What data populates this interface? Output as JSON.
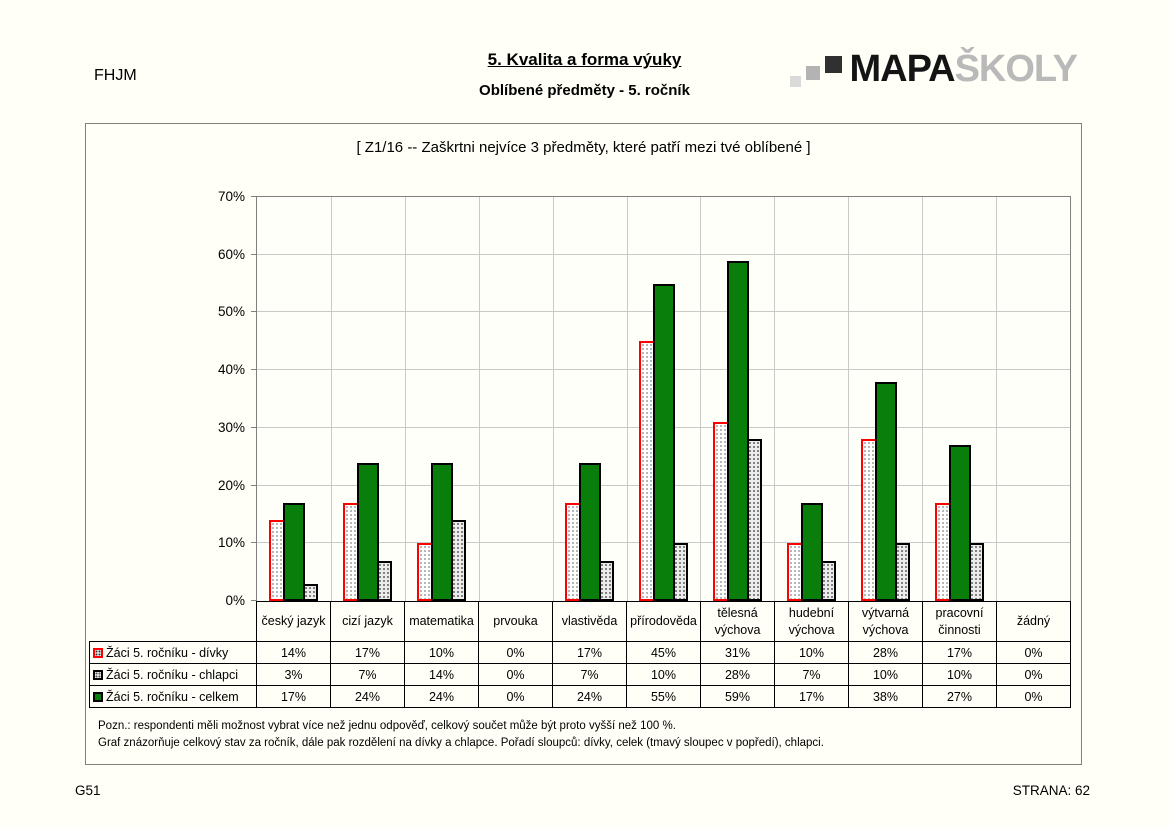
{
  "page": {
    "org_code": "FHJM",
    "section_title": "5. Kvalita a forma výuky",
    "page_subtitle": "Oblíbené předměty - 5. ročník",
    "footer_left": "G51",
    "footer_right": "STRANA: 62"
  },
  "logo": {
    "primary": "MAPA",
    "secondary": "ŠKOLY"
  },
  "chart_data": {
    "type": "bar",
    "title": "[ Z1/16 -- Zaškrtni nejvíce 3 předměty, které patří mezi tvé oblíbené ]",
    "categories": [
      "český jazyk",
      "cizí jazyk",
      "matematika",
      "prvouka",
      "vlastivěda",
      "přírodověda",
      "tělesná výchova",
      "hudební výchova",
      "výtvarná výchova",
      "pracovní činnosti",
      "žádný"
    ],
    "series": [
      {
        "name": "Žáci 5. ročníku - dívky",
        "style": "dotted-red",
        "values": [
          14,
          17,
          10,
          0,
          17,
          45,
          31,
          10,
          28,
          17,
          0
        ]
      },
      {
        "name": "Žáci 5. ročníku - chlapci",
        "style": "dotted-gray",
        "values": [
          3,
          7,
          14,
          0,
          7,
          10,
          28,
          7,
          10,
          10,
          0
        ]
      },
      {
        "name": "Žáci 5. ročníku - celkem",
        "style": "solid-green",
        "values": [
          17,
          24,
          24,
          0,
          24,
          55,
          59,
          17,
          38,
          27,
          0
        ]
      }
    ],
    "draw_order": [
      0,
      2,
      1
    ],
    "ylim": [
      0,
      70
    ],
    "ytick_step": 10,
    "value_suffix": "%",
    "grid": true,
    "legend_position": "table-left",
    "colors": {
      "total_green": "#0a7e0a",
      "girls_border": "#ff0000",
      "boys_fill": "#ececec",
      "gridline": "#c9c9c9"
    }
  },
  "notes": [
    "Pozn.: respondenti měli možnost vybrat  více než jednu odpověď, celkový součet může být proto vyšší než 100 %.",
    "Graf znázorňuje celkový stav za ročník, dále pak rozdělení na dívky a chlapce. Pořadí sloupců: dívky, celek (tmavý sloupec v popředí), chlapci."
  ]
}
